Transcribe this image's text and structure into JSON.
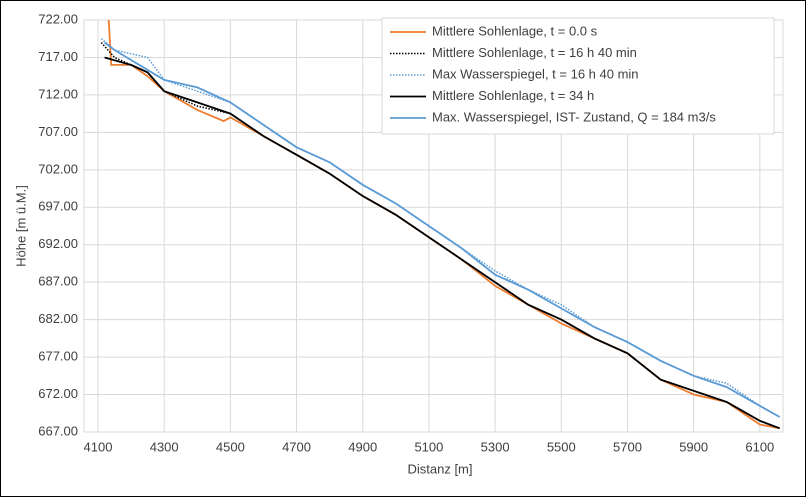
{
  "chart_data": {
    "type": "line",
    "xlabel": "Distanz [m]",
    "ylabel": "Höhe [m ü.M.]",
    "xlim": [
      4100,
      6170
    ],
    "xticks": [
      4100,
      4300,
      4500,
      4700,
      4900,
      5100,
      5300,
      5500,
      5700,
      5900,
      6100
    ],
    "ylim": [
      667,
      722
    ],
    "yticks": [
      {
        "value": 667,
        "label": "667.00"
      },
      {
        "value": 672,
        "label": "672.00"
      },
      {
        "value": 677,
        "label": "677.00"
      },
      {
        "value": 682,
        "label": "682.00"
      },
      {
        "value": 687,
        "label": "687.00"
      },
      {
        "value": 692,
        "label": "692.00"
      },
      {
        "value": 697,
        "label": "697.00"
      },
      {
        "value": 702,
        "label": "702.00"
      },
      {
        "value": 707,
        "label": "707.00"
      },
      {
        "value": 712,
        "label": "712.00"
      },
      {
        "value": 717,
        "label": "717.00"
      },
      {
        "value": 722,
        "label": "722.00"
      }
    ],
    "grid": true,
    "legend": "upper right",
    "series": [
      {
        "name": "Mittlere Sohlenlage, t = 0.0 s",
        "color": "#ed7d31",
        "dash": "solid",
        "x": [
          4130,
          4140,
          4200,
          4250,
          4300,
          4400,
          4480,
          4500,
          4600,
          4700,
          4800,
          4900,
          5000,
          5100,
          5200,
          5300,
          5400,
          5500,
          5600,
          5700,
          5800,
          5900,
          6000,
          6100,
          6160
        ],
        "values": [
          724,
          716,
          716,
          714.5,
          712.5,
          710,
          708.5,
          709,
          706.5,
          704,
          701.5,
          698.5,
          696,
          693,
          690,
          686.5,
          684,
          681.5,
          679.5,
          677.5,
          674,
          672,
          671,
          668,
          667.5
        ]
      },
      {
        "name": "Mittlere Sohlenlage, t = 16 h 40 min",
        "color": "#000000",
        "dash": "dotted",
        "x": [
          4110,
          4150,
          4200,
          4250,
          4300,
          4400,
          4500,
          4600,
          4700,
          4800,
          4900,
          5000,
          5100,
          5200,
          5300,
          5400,
          5500,
          5600,
          5700,
          5800,
          5900,
          6000,
          6100,
          6160
        ],
        "values": [
          719,
          717,
          716,
          715,
          712.5,
          710.5,
          709.5,
          706.5,
          704,
          701.5,
          698.5,
          696,
          693,
          690,
          687,
          684,
          682,
          679.5,
          677.5,
          674,
          672.5,
          671,
          668.5,
          667.5
        ]
      },
      {
        "name": "Max Wasserspiegel, t = 16 h 40 min",
        "color": "#5b9bd5",
        "dash": "dotted",
        "x": [
          4110,
          4150,
          4250,
          4300,
          4400,
          4500,
          4600,
          4700,
          4800,
          4900,
          5000,
          5100,
          5200,
          5300,
          5400,
          5500,
          5600,
          5700,
          5800,
          5900,
          6000,
          6100,
          6160
        ],
        "values": [
          719.5,
          718,
          717,
          714,
          712.5,
          711,
          708,
          705,
          703,
          700,
          697.5,
          694.5,
          691.5,
          688.5,
          686,
          684,
          681,
          679,
          676.5,
          674.5,
          673.5,
          670.5,
          669
        ]
      },
      {
        "name": "Mittlere Sohlenlage, t = 34 h",
        "color": "#000000",
        "dash": "solid",
        "x": [
          4120,
          4200,
          4250,
          4300,
          4400,
          4500,
          4600,
          4700,
          4800,
          4900,
          5000,
          5100,
          5200,
          5300,
          5400,
          5500,
          5600,
          5700,
          5800,
          5900,
          6000,
          6100,
          6160
        ],
        "values": [
          717,
          716,
          715,
          712.5,
          711,
          709.5,
          706.5,
          704,
          701.5,
          698.5,
          696,
          693,
          690,
          687,
          684,
          682,
          679.5,
          677.5,
          674,
          672.5,
          671,
          668.5,
          667.5
        ]
      },
      {
        "name": "Max. Wasserspiegel, IST- Zustand, Q = 184 m3/s",
        "color": "#5b9bd5",
        "dash": "solid",
        "x": [
          4120,
          4150,
          4300,
          4400,
          4500,
          4600,
          4700,
          4800,
          4900,
          5000,
          5100,
          5200,
          5300,
          5400,
          5500,
          5600,
          5700,
          5800,
          5900,
          6000,
          6100,
          6160
        ],
        "values": [
          719,
          718,
          714,
          713,
          711,
          708,
          705,
          703,
          700,
          697.5,
          694.5,
          691.5,
          688,
          686,
          683.5,
          681,
          679,
          676.5,
          674.5,
          673,
          670.5,
          669
        ]
      }
    ]
  }
}
